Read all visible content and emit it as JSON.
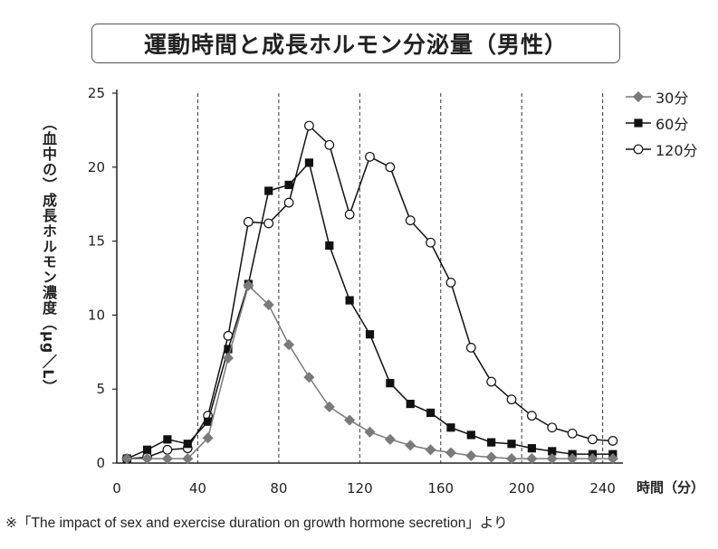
{
  "title": "運動時間と成長ホルモン分泌量（男性）",
  "source_note": "※「The impact of sex and exercise duration on growth hormone secretion」より",
  "chart_data": {
    "type": "line",
    "title": "運動時間と成長ホルモン分泌量（男性）",
    "xlabel": "時間（分）",
    "ylabel": "（血中の）成長ホルモン濃度（μg／L）",
    "xlim": [
      0,
      250
    ],
    "ylim": [
      0,
      25
    ],
    "xticks": [
      0,
      40,
      80,
      120,
      160,
      200,
      240
    ],
    "yticks": [
      0,
      5,
      10,
      15,
      20,
      25
    ],
    "vlines": [
      40,
      80,
      120,
      160,
      200,
      240
    ],
    "legend_position": "top-right",
    "series": [
      {
        "name": "30分",
        "marker": "diamond",
        "color": "#7a7a7a",
        "x": [
          5,
          15,
          25,
          35,
          45,
          55,
          65,
          75,
          85,
          95,
          105,
          115,
          125,
          135,
          145,
          155,
          165,
          175,
          185,
          195,
          205,
          215,
          225,
          235,
          245
        ],
        "y": [
          0.3,
          0.3,
          0.3,
          0.3,
          1.7,
          7.1,
          12.0,
          10.7,
          8.0,
          5.8,
          3.8,
          2.9,
          2.1,
          1.6,
          1.2,
          0.9,
          0.7,
          0.5,
          0.4,
          0.3,
          0.3,
          0.3,
          0.3,
          0.3,
          0.3
        ]
      },
      {
        "name": "60分",
        "marker": "square",
        "color": "#111111",
        "x": [
          5,
          15,
          25,
          35,
          45,
          55,
          65,
          75,
          85,
          95,
          105,
          115,
          125,
          135,
          145,
          155,
          165,
          175,
          185,
          195,
          205,
          215,
          225,
          235,
          245
        ],
        "y": [
          0.3,
          0.9,
          1.6,
          1.3,
          2.8,
          7.7,
          12.1,
          18.4,
          18.8,
          20.3,
          14.7,
          11.0,
          8.7,
          5.4,
          4.0,
          3.4,
          2.4,
          1.9,
          1.4,
          1.3,
          1.0,
          0.8,
          0.6,
          0.6,
          0.6
        ]
      },
      {
        "name": "120分",
        "marker": "circle-open",
        "color": "#111111",
        "x": [
          5,
          15,
          25,
          35,
          45,
          55,
          65,
          75,
          85,
          95,
          105,
          115,
          125,
          135,
          145,
          155,
          165,
          175,
          185,
          195,
          205,
          215,
          225,
          235,
          245
        ],
        "y": [
          0.3,
          0.4,
          0.9,
          1.0,
          3.2,
          8.6,
          16.3,
          16.2,
          17.6,
          22.8,
          21.5,
          16.8,
          20.7,
          20.0,
          16.4,
          14.9,
          12.2,
          7.8,
          5.5,
          4.3,
          3.2,
          2.4,
          2.0,
          1.6,
          1.5
        ]
      }
    ]
  }
}
